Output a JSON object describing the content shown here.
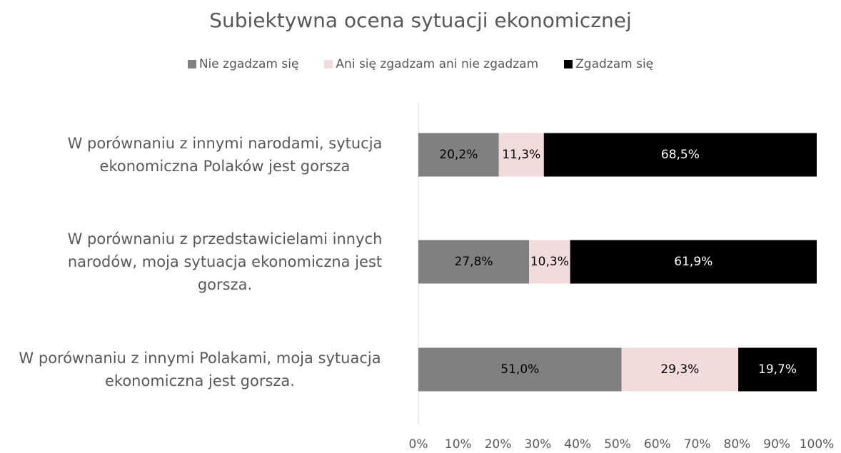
{
  "chart_data": {
    "type": "stacked_barh",
    "title": "Subiektywna ocena sytuacji ekonomicznej",
    "categories": [
      "W porównaniu z innymi narodami, sytucja ekonomiczna Polaków jest gorsza",
      "W porównaniu z przedstawicielami innych narodów, moja sytuacja ekonomiczna jest gorsza.",
      "W porównaniu z innymi Polakami, moja sytuacja ekonomiczna jest gorsza."
    ],
    "series": [
      {
        "name": "Nie zgadzam się",
        "color": "#808080",
        "values": [
          20.2,
          27.8,
          51.0
        ],
        "value_labels": [
          "20,2%",
          "27,8%",
          "51,0%"
        ]
      },
      {
        "name": "Ani się zgadzam ani nie zgadzam",
        "color": "#f2dcdb",
        "values": [
          11.3,
          10.3,
          29.3
        ],
        "value_labels": [
          "11,3%",
          "10,3%",
          "29,3%"
        ]
      },
      {
        "name": "Zgadzam się",
        "color": "#000000",
        "values": [
          68.5,
          61.9,
          19.7
        ],
        "value_labels": [
          "68,5%",
          "61,9%",
          "19,7%"
        ]
      }
    ],
    "xlim": [
      0,
      100
    ],
    "xticks": [
      {
        "value": 0,
        "label": "0%"
      },
      {
        "value": 10,
        "label": "10%"
      },
      {
        "value": 20,
        "label": "20%"
      },
      {
        "value": 30,
        "label": "30%"
      },
      {
        "value": 40,
        "label": "40%"
      },
      {
        "value": 50,
        "label": "50%"
      },
      {
        "value": 60,
        "label": "60%"
      },
      {
        "value": 70,
        "label": "70%"
      },
      {
        "value": 80,
        "label": "80%"
      },
      {
        "value": 90,
        "label": "90%"
      },
      {
        "value": 100,
        "label": "100%"
      }
    ],
    "legend": "top"
  }
}
